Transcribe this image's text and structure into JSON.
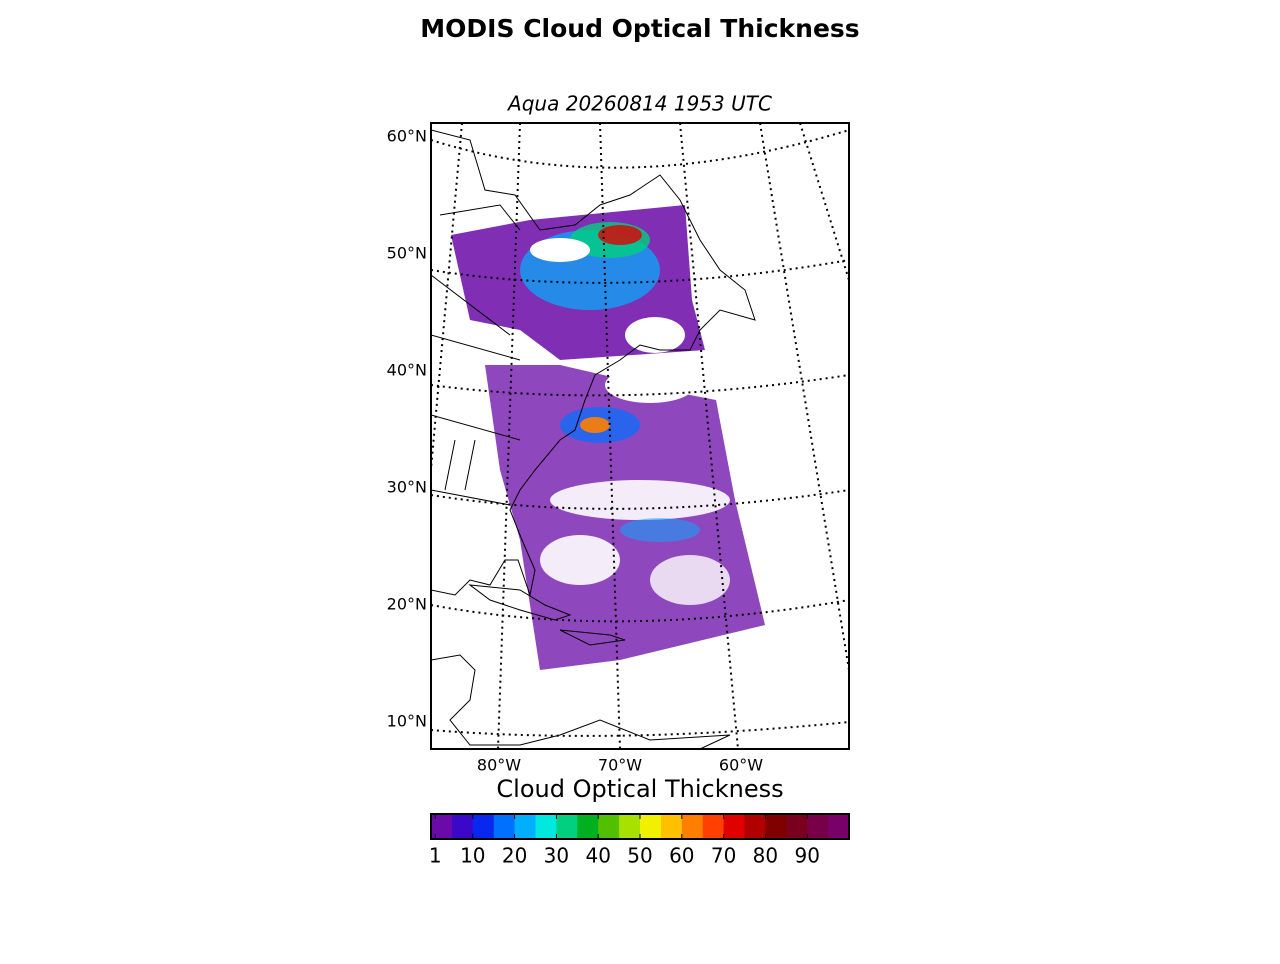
{
  "chart_data": {
    "type": "map",
    "title": "MODIS Cloud Optical Thickness",
    "subtitle": "Aqua 20260814 1953 UTC",
    "lat_ticks": [
      {
        "value": 60,
        "label": "60°N"
      },
      {
        "value": 50,
        "label": "50°N"
      },
      {
        "value": 40,
        "label": "40°N"
      },
      {
        "value": 30,
        "label": "30°N"
      },
      {
        "value": 20,
        "label": "20°N"
      },
      {
        "value": 10,
        "label": "10°N"
      }
    ],
    "lon_ticks": [
      {
        "value": -80,
        "label": "80°W"
      },
      {
        "value": -70,
        "label": "70°W"
      },
      {
        "value": -60,
        "label": "60°W"
      }
    ],
    "colorbar": {
      "label": "Cloud Optical Thickness",
      "lim": [
        0,
        100
      ],
      "ticks": [
        1,
        10,
        20,
        30,
        40,
        50,
        60,
        70,
        80,
        90
      ],
      "colors": [
        "#6a0aa8",
        "#3c08c8",
        "#0828f0",
        "#0070ff",
        "#00b0ff",
        "#00e8e0",
        "#00d080",
        "#00b020",
        "#50c000",
        "#a8e000",
        "#f0f000",
        "#ffc000",
        "#ff8000",
        "#ff4000",
        "#e00000",
        "#b00000",
        "#800000",
        "#7a0020",
        "#780048",
        "#780068"
      ]
    }
  }
}
